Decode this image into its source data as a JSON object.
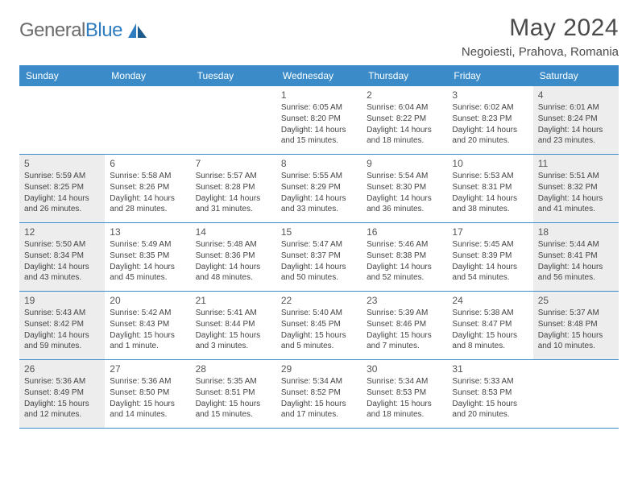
{
  "logo": {
    "text_gray": "General",
    "text_blue": "Blue"
  },
  "title": "May 2024",
  "location": "Negoiesti, Prahova, Romania",
  "weekday_bg": "#3b8bc9",
  "weekday_fg": "#ffffff",
  "shaded_bg": "#ededed",
  "border_color": "#3b8bc9",
  "weekdays": [
    "Sunday",
    "Monday",
    "Tuesday",
    "Wednesday",
    "Thursday",
    "Friday",
    "Saturday"
  ],
  "weeks": [
    [
      {
        "num": "",
        "shaded": false,
        "lines": []
      },
      {
        "num": "",
        "shaded": false,
        "lines": []
      },
      {
        "num": "",
        "shaded": false,
        "lines": []
      },
      {
        "num": "1",
        "shaded": false,
        "lines": [
          "Sunrise: 6:05 AM",
          "Sunset: 8:20 PM",
          "Daylight: 14 hours",
          "and 15 minutes."
        ]
      },
      {
        "num": "2",
        "shaded": false,
        "lines": [
          "Sunrise: 6:04 AM",
          "Sunset: 8:22 PM",
          "Daylight: 14 hours",
          "and 18 minutes."
        ]
      },
      {
        "num": "3",
        "shaded": false,
        "lines": [
          "Sunrise: 6:02 AM",
          "Sunset: 8:23 PM",
          "Daylight: 14 hours",
          "and 20 minutes."
        ]
      },
      {
        "num": "4",
        "shaded": true,
        "lines": [
          "Sunrise: 6:01 AM",
          "Sunset: 8:24 PM",
          "Daylight: 14 hours",
          "and 23 minutes."
        ]
      }
    ],
    [
      {
        "num": "5",
        "shaded": true,
        "lines": [
          "Sunrise: 5:59 AM",
          "Sunset: 8:25 PM",
          "Daylight: 14 hours",
          "and 26 minutes."
        ]
      },
      {
        "num": "6",
        "shaded": false,
        "lines": [
          "Sunrise: 5:58 AM",
          "Sunset: 8:26 PM",
          "Daylight: 14 hours",
          "and 28 minutes."
        ]
      },
      {
        "num": "7",
        "shaded": false,
        "lines": [
          "Sunrise: 5:57 AM",
          "Sunset: 8:28 PM",
          "Daylight: 14 hours",
          "and 31 minutes."
        ]
      },
      {
        "num": "8",
        "shaded": false,
        "lines": [
          "Sunrise: 5:55 AM",
          "Sunset: 8:29 PM",
          "Daylight: 14 hours",
          "and 33 minutes."
        ]
      },
      {
        "num": "9",
        "shaded": false,
        "lines": [
          "Sunrise: 5:54 AM",
          "Sunset: 8:30 PM",
          "Daylight: 14 hours",
          "and 36 minutes."
        ]
      },
      {
        "num": "10",
        "shaded": false,
        "lines": [
          "Sunrise: 5:53 AM",
          "Sunset: 8:31 PM",
          "Daylight: 14 hours",
          "and 38 minutes."
        ]
      },
      {
        "num": "11",
        "shaded": true,
        "lines": [
          "Sunrise: 5:51 AM",
          "Sunset: 8:32 PM",
          "Daylight: 14 hours",
          "and 41 minutes."
        ]
      }
    ],
    [
      {
        "num": "12",
        "shaded": true,
        "lines": [
          "Sunrise: 5:50 AM",
          "Sunset: 8:34 PM",
          "Daylight: 14 hours",
          "and 43 minutes."
        ]
      },
      {
        "num": "13",
        "shaded": false,
        "lines": [
          "Sunrise: 5:49 AM",
          "Sunset: 8:35 PM",
          "Daylight: 14 hours",
          "and 45 minutes."
        ]
      },
      {
        "num": "14",
        "shaded": false,
        "lines": [
          "Sunrise: 5:48 AM",
          "Sunset: 8:36 PM",
          "Daylight: 14 hours",
          "and 48 minutes."
        ]
      },
      {
        "num": "15",
        "shaded": false,
        "lines": [
          "Sunrise: 5:47 AM",
          "Sunset: 8:37 PM",
          "Daylight: 14 hours",
          "and 50 minutes."
        ]
      },
      {
        "num": "16",
        "shaded": false,
        "lines": [
          "Sunrise: 5:46 AM",
          "Sunset: 8:38 PM",
          "Daylight: 14 hours",
          "and 52 minutes."
        ]
      },
      {
        "num": "17",
        "shaded": false,
        "lines": [
          "Sunrise: 5:45 AM",
          "Sunset: 8:39 PM",
          "Daylight: 14 hours",
          "and 54 minutes."
        ]
      },
      {
        "num": "18",
        "shaded": true,
        "lines": [
          "Sunrise: 5:44 AM",
          "Sunset: 8:41 PM",
          "Daylight: 14 hours",
          "and 56 minutes."
        ]
      }
    ],
    [
      {
        "num": "19",
        "shaded": true,
        "lines": [
          "Sunrise: 5:43 AM",
          "Sunset: 8:42 PM",
          "Daylight: 14 hours",
          "and 59 minutes."
        ]
      },
      {
        "num": "20",
        "shaded": false,
        "lines": [
          "Sunrise: 5:42 AM",
          "Sunset: 8:43 PM",
          "Daylight: 15 hours",
          "and 1 minute."
        ]
      },
      {
        "num": "21",
        "shaded": false,
        "lines": [
          "Sunrise: 5:41 AM",
          "Sunset: 8:44 PM",
          "Daylight: 15 hours",
          "and 3 minutes."
        ]
      },
      {
        "num": "22",
        "shaded": false,
        "lines": [
          "Sunrise: 5:40 AM",
          "Sunset: 8:45 PM",
          "Daylight: 15 hours",
          "and 5 minutes."
        ]
      },
      {
        "num": "23",
        "shaded": false,
        "lines": [
          "Sunrise: 5:39 AM",
          "Sunset: 8:46 PM",
          "Daylight: 15 hours",
          "and 7 minutes."
        ]
      },
      {
        "num": "24",
        "shaded": false,
        "lines": [
          "Sunrise: 5:38 AM",
          "Sunset: 8:47 PM",
          "Daylight: 15 hours",
          "and 8 minutes."
        ]
      },
      {
        "num": "25",
        "shaded": true,
        "lines": [
          "Sunrise: 5:37 AM",
          "Sunset: 8:48 PM",
          "Daylight: 15 hours",
          "and 10 minutes."
        ]
      }
    ],
    [
      {
        "num": "26",
        "shaded": true,
        "lines": [
          "Sunrise: 5:36 AM",
          "Sunset: 8:49 PM",
          "Daylight: 15 hours",
          "and 12 minutes."
        ]
      },
      {
        "num": "27",
        "shaded": false,
        "lines": [
          "Sunrise: 5:36 AM",
          "Sunset: 8:50 PM",
          "Daylight: 15 hours",
          "and 14 minutes."
        ]
      },
      {
        "num": "28",
        "shaded": false,
        "lines": [
          "Sunrise: 5:35 AM",
          "Sunset: 8:51 PM",
          "Daylight: 15 hours",
          "and 15 minutes."
        ]
      },
      {
        "num": "29",
        "shaded": false,
        "lines": [
          "Sunrise: 5:34 AM",
          "Sunset: 8:52 PM",
          "Daylight: 15 hours",
          "and 17 minutes."
        ]
      },
      {
        "num": "30",
        "shaded": false,
        "lines": [
          "Sunrise: 5:34 AM",
          "Sunset: 8:53 PM",
          "Daylight: 15 hours",
          "and 18 minutes."
        ]
      },
      {
        "num": "31",
        "shaded": false,
        "lines": [
          "Sunrise: 5:33 AM",
          "Sunset: 8:53 PM",
          "Daylight: 15 hours",
          "and 20 minutes."
        ]
      },
      {
        "num": "",
        "shaded": false,
        "lines": []
      }
    ]
  ]
}
